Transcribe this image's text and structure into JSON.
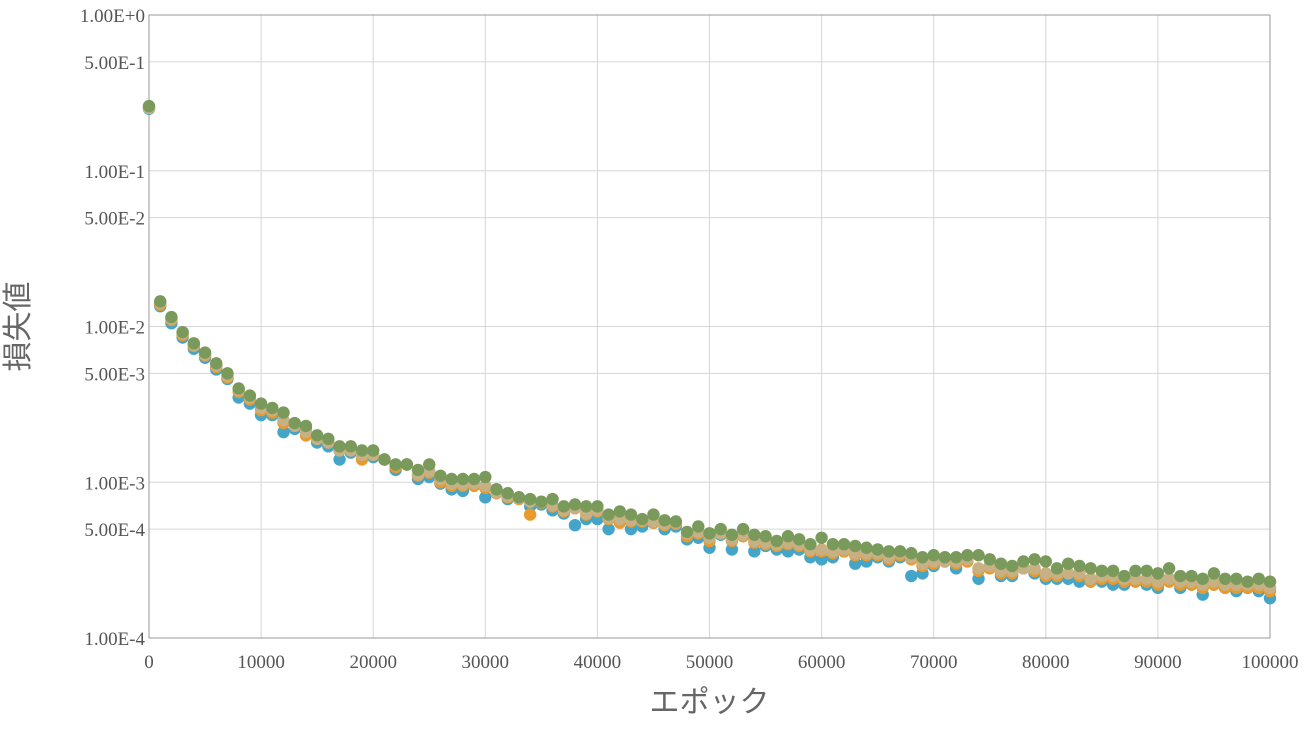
{
  "chart_data": {
    "type": "scatter",
    "title": "",
    "xlabel": "エポック",
    "ylabel": "損失値",
    "xlim": [
      0,
      100000
    ],
    "ylim": [
      0.0001,
      1
    ],
    "y_scale": "log",
    "grid": true,
    "x_ticks": [
      {
        "value": 0,
        "label": "0"
      },
      {
        "value": 10000,
        "label": "10000"
      },
      {
        "value": 20000,
        "label": "20000"
      },
      {
        "value": 30000,
        "label": "30000"
      },
      {
        "value": 40000,
        "label": "40000"
      },
      {
        "value": 50000,
        "label": "50000"
      },
      {
        "value": 60000,
        "label": "60000"
      },
      {
        "value": 70000,
        "label": "70000"
      },
      {
        "value": 80000,
        "label": "80000"
      },
      {
        "value": 90000,
        "label": "90000"
      },
      {
        "value": 100000,
        "label": "100000"
      }
    ],
    "y_ticks": [
      {
        "value": 1,
        "label": "1.00E+0"
      },
      {
        "value": 0.5,
        "label": "5.00E-1"
      },
      {
        "value": 0.1,
        "label": "1.00E-1"
      },
      {
        "value": 0.05,
        "label": "5.00E-2"
      },
      {
        "value": 0.01,
        "label": "1.00E-2"
      },
      {
        "value": 0.005,
        "label": "5.00E-3"
      },
      {
        "value": 0.001,
        "label": "1.00E-3"
      },
      {
        "value": 0.0005,
        "label": "5.00E-4"
      },
      {
        "value": 0.0001,
        "label": "1.00E-4"
      }
    ],
    "series": [
      {
        "color": "#45a5c8",
        "x": [
          0,
          1000,
          2000,
          3000,
          4000,
          5000,
          6000,
          7000,
          8000,
          9000,
          10000,
          11000,
          12000,
          13000,
          14000,
          15000,
          16000,
          17000,
          18000,
          19000,
          20000,
          21000,
          22000,
          23000,
          24000,
          25000,
          26000,
          27000,
          28000,
          29000,
          30000,
          31000,
          32000,
          33000,
          34000,
          35000,
          36000,
          37000,
          38000,
          39000,
          40000,
          41000,
          42000,
          43000,
          44000,
          45000,
          46000,
          47000,
          48000,
          49000,
          50000,
          51000,
          52000,
          53000,
          54000,
          55000,
          56000,
          57000,
          58000,
          59000,
          60000,
          61000,
          62000,
          63000,
          64000,
          65000,
          66000,
          67000,
          68000,
          69000,
          70000,
          71000,
          72000,
          73000,
          74000,
          75000,
          76000,
          77000,
          78000,
          79000,
          80000,
          81000,
          82000,
          83000,
          84000,
          85000,
          86000,
          87000,
          88000,
          89000,
          90000,
          91000,
          92000,
          93000,
          94000,
          95000,
          96000,
          97000,
          98000,
          99000,
          100000
        ],
        "y": [
          0.25,
          0.0135,
          0.0105,
          0.0085,
          0.0072,
          0.0063,
          0.0053,
          0.0046,
          0.0035,
          0.0032,
          0.0027,
          0.0027,
          0.0021,
          0.0022,
          0.0022,
          0.0018,
          0.0017,
          0.0014,
          0.00155,
          0.0015,
          0.00145,
          0.0014,
          0.0012,
          0.0013,
          0.00105,
          0.00108,
          0.00098,
          0.0009,
          0.00088,
          0.00095,
          0.0008,
          0.0009,
          0.00078,
          0.0008,
          0.0007,
          0.00072,
          0.00066,
          0.00063,
          0.00053,
          0.00058,
          0.00058,
          0.0005,
          0.00057,
          0.0005,
          0.00052,
          0.00055,
          0.0005,
          0.00052,
          0.00043,
          0.00044,
          0.00038,
          0.00046,
          0.00037,
          0.00047,
          0.00036,
          0.00039,
          0.00037,
          0.00036,
          0.00037,
          0.00033,
          0.00032,
          0.00033,
          0.00036,
          0.0003,
          0.00031,
          0.00033,
          0.00031,
          0.00033,
          0.00025,
          0.00026,
          0.00029,
          0.00031,
          0.00028,
          0.00032,
          0.00024,
          0.00029,
          0.00025,
          0.00025,
          0.00028,
          0.00026,
          0.00024,
          0.00024,
          0.00024,
          0.00023,
          0.00023,
          0.00023,
          0.00022,
          0.00022,
          0.00023,
          0.00022,
          0.00021,
          0.00024,
          0.00021,
          0.00022,
          0.00019,
          0.00022,
          0.00021,
          0.0002,
          0.00021,
          0.0002,
          0.00018
        ]
      },
      {
        "color": "#e99a2c",
        "x": [
          0,
          1000,
          2000,
          3000,
          4000,
          5000,
          6000,
          7000,
          8000,
          9000,
          10000,
          11000,
          12000,
          13000,
          14000,
          15000,
          16000,
          17000,
          18000,
          19000,
          20000,
          21000,
          22000,
          23000,
          24000,
          25000,
          26000,
          27000,
          28000,
          29000,
          30000,
          31000,
          32000,
          33000,
          34000,
          35000,
          36000,
          37000,
          38000,
          39000,
          40000,
          41000,
          42000,
          43000,
          44000,
          45000,
          46000,
          47000,
          48000,
          49000,
          50000,
          51000,
          52000,
          53000,
          54000,
          55000,
          56000,
          57000,
          58000,
          59000,
          60000,
          61000,
          62000,
          63000,
          64000,
          65000,
          66000,
          67000,
          68000,
          69000,
          70000,
          71000,
          72000,
          73000,
          74000,
          75000,
          76000,
          77000,
          78000,
          79000,
          80000,
          81000,
          82000,
          83000,
          84000,
          85000,
          86000,
          87000,
          88000,
          89000,
          90000,
          91000,
          92000,
          93000,
          94000,
          95000,
          96000,
          97000,
          98000,
          99000,
          100000
        ],
        "y": [
          0.255,
          0.0138,
          0.011,
          0.0088,
          0.0075,
          0.0065,
          0.0055,
          0.0047,
          0.0038,
          0.0034,
          0.0029,
          0.0028,
          0.0024,
          0.0023,
          0.002,
          0.0019,
          0.0018,
          0.0016,
          0.0016,
          0.0014,
          0.0015,
          0.0014,
          0.00125,
          0.0013,
          0.0011,
          0.00115,
          0.001,
          0.00095,
          0.00095,
          0.00095,
          0.00092,
          0.00085,
          0.0008,
          0.00078,
          0.00062,
          0.00074,
          0.0007,
          0.00065,
          0.00068,
          0.00062,
          0.00065,
          0.00058,
          0.00055,
          0.00056,
          0.00056,
          0.00055,
          0.00053,
          0.00054,
          0.00045,
          0.00047,
          0.00042,
          0.00047,
          0.00042,
          0.00045,
          0.00041,
          0.0004,
          0.00039,
          0.0004,
          0.00039,
          0.00036,
          0.00036,
          0.00035,
          0.00036,
          0.00034,
          0.00034,
          0.00034,
          0.00032,
          0.00034,
          0.00032,
          0.00029,
          0.0003,
          0.00031,
          0.0003,
          0.00031,
          0.00027,
          0.00028,
          0.00026,
          0.00026,
          0.00028,
          0.00027,
          0.00025,
          0.00025,
          0.00026,
          0.00025,
          0.00023,
          0.00024,
          0.00024,
          0.00023,
          0.00023,
          0.00023,
          0.00022,
          0.00023,
          0.00022,
          0.00022,
          0.00021,
          0.00022,
          0.00021,
          0.00021,
          0.00021,
          0.00021,
          0.0002
        ]
      },
      {
        "color": "#c7b083",
        "x": [
          0,
          1000,
          2000,
          3000,
          4000,
          5000,
          6000,
          7000,
          8000,
          9000,
          10000,
          11000,
          12000,
          13000,
          14000,
          15000,
          16000,
          17000,
          18000,
          19000,
          20000,
          21000,
          22000,
          23000,
          24000,
          25000,
          26000,
          27000,
          28000,
          29000,
          30000,
          31000,
          32000,
          33000,
          34000,
          35000,
          36000,
          37000,
          38000,
          39000,
          40000,
          41000,
          42000,
          43000,
          44000,
          45000,
          46000,
          47000,
          48000,
          49000,
          50000,
          51000,
          52000,
          53000,
          54000,
          55000,
          56000,
          57000,
          58000,
          59000,
          60000,
          61000,
          62000,
          63000,
          64000,
          65000,
          66000,
          67000,
          68000,
          69000,
          70000,
          71000,
          72000,
          73000,
          74000,
          75000,
          76000,
          77000,
          78000,
          79000,
          80000,
          81000,
          82000,
          83000,
          84000,
          85000,
          86000,
          87000,
          88000,
          89000,
          90000,
          91000,
          92000,
          93000,
          94000,
          95000,
          96000,
          97000,
          98000,
          99000,
          100000
        ],
        "y": [
          0.253,
          0.0142,
          0.0112,
          0.009,
          0.0076,
          0.0066,
          0.0056,
          0.0048,
          0.0039,
          0.0035,
          0.003,
          0.0029,
          0.0025,
          0.0023,
          0.0021,
          0.0019,
          0.0018,
          0.0016,
          0.0016,
          0.0015,
          0.0015,
          0.0014,
          0.0013,
          0.0013,
          0.00112,
          0.00118,
          0.00105,
          0.00098,
          0.00097,
          0.00098,
          0.00095,
          0.00086,
          0.00081,
          0.00079,
          0.00075,
          0.00075,
          0.00071,
          0.00066,
          0.00068,
          0.00063,
          0.00066,
          0.00059,
          0.00058,
          0.00057,
          0.00057,
          0.00056,
          0.00054,
          0.00055,
          0.00047,
          0.00048,
          0.00044,
          0.00047,
          0.00043,
          0.00046,
          0.00042,
          0.00041,
          0.0004,
          0.00041,
          0.0004,
          0.00037,
          0.00037,
          0.00036,
          0.00037,
          0.00035,
          0.00035,
          0.00035,
          0.00033,
          0.00035,
          0.00033,
          0.0003,
          0.00031,
          0.00031,
          0.00031,
          0.00032,
          0.00028,
          0.00029,
          0.00027,
          0.00027,
          0.00028,
          0.00028,
          0.00026,
          0.00026,
          0.00026,
          0.00026,
          0.00024,
          0.00025,
          0.00025,
          0.00024,
          0.00024,
          0.00024,
          0.00023,
          0.00024,
          0.00023,
          0.00023,
          0.00022,
          0.00023,
          0.00022,
          0.00022,
          0.00022,
          0.00022,
          0.00021
        ]
      },
      {
        "color": "#7a9a5b",
        "x": [
          0,
          1000,
          2000,
          3000,
          4000,
          5000,
          6000,
          7000,
          8000,
          9000,
          10000,
          11000,
          12000,
          13000,
          14000,
          15000,
          16000,
          17000,
          18000,
          19000,
          20000,
          21000,
          22000,
          23000,
          24000,
          25000,
          26000,
          27000,
          28000,
          29000,
          30000,
          31000,
          32000,
          33000,
          34000,
          35000,
          36000,
          37000,
          38000,
          39000,
          40000,
          41000,
          42000,
          43000,
          44000,
          45000,
          46000,
          47000,
          48000,
          49000,
          50000,
          51000,
          52000,
          53000,
          54000,
          55000,
          56000,
          57000,
          58000,
          59000,
          60000,
          61000,
          62000,
          63000,
          64000,
          65000,
          66000,
          67000,
          68000,
          69000,
          70000,
          71000,
          72000,
          73000,
          74000,
          75000,
          76000,
          77000,
          78000,
          79000,
          80000,
          81000,
          82000,
          83000,
          84000,
          85000,
          86000,
          87000,
          88000,
          89000,
          90000,
          91000,
          92000,
          93000,
          94000,
          95000,
          96000,
          97000,
          98000,
          99000,
          100000
        ],
        "y": [
          0.26,
          0.0145,
          0.0115,
          0.0092,
          0.0078,
          0.0068,
          0.0058,
          0.005,
          0.004,
          0.0036,
          0.0032,
          0.003,
          0.0028,
          0.0024,
          0.0023,
          0.002,
          0.0019,
          0.0017,
          0.0017,
          0.0016,
          0.0016,
          0.0014,
          0.0013,
          0.0013,
          0.0012,
          0.0013,
          0.0011,
          0.00105,
          0.00105,
          0.00105,
          0.00108,
          0.0009,
          0.00085,
          0.0008,
          0.00078,
          0.00075,
          0.00078,
          0.0007,
          0.00072,
          0.0007,
          0.0007,
          0.00062,
          0.00065,
          0.00062,
          0.00058,
          0.00062,
          0.00057,
          0.00056,
          0.00048,
          0.00052,
          0.00047,
          0.0005,
          0.00046,
          0.0005,
          0.00046,
          0.00045,
          0.00042,
          0.00045,
          0.00043,
          0.0004,
          0.00044,
          0.0004,
          0.0004,
          0.00039,
          0.00038,
          0.00037,
          0.00036,
          0.00036,
          0.00035,
          0.00033,
          0.00034,
          0.00033,
          0.00033,
          0.00034,
          0.00034,
          0.00032,
          0.0003,
          0.00029,
          0.00031,
          0.00032,
          0.00031,
          0.00028,
          0.0003,
          0.00029,
          0.00028,
          0.00027,
          0.00027,
          0.00025,
          0.00027,
          0.00027,
          0.00026,
          0.00028,
          0.00025,
          0.00025,
          0.00024,
          0.00026,
          0.00024,
          0.00024,
          0.00023,
          0.00024,
          0.00023
        ]
      }
    ]
  }
}
